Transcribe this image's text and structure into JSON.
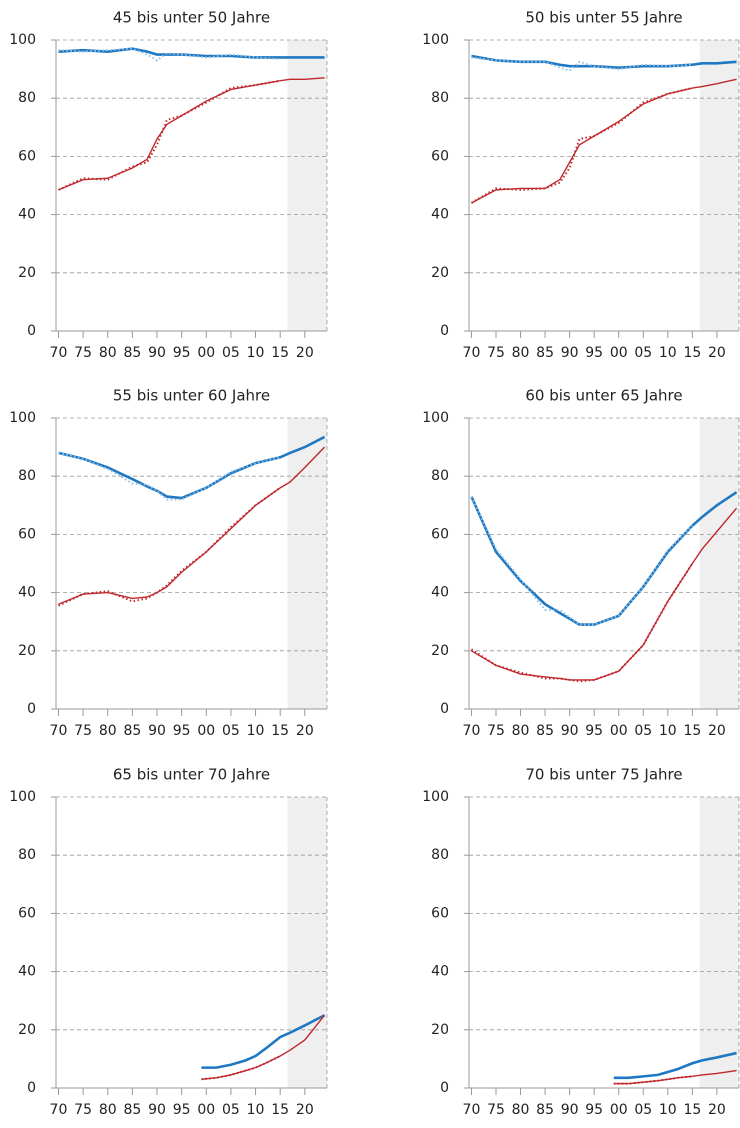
{
  "chart_data": [
    {
      "type": "line",
      "title": "45 bis unter 50 Jahre",
      "x": [
        1970,
        1975,
        1980,
        1985,
        1988,
        1990,
        1992,
        1995,
        2000,
        2005,
        2010,
        2015,
        2017,
        2020,
        2024
      ],
      "series": [
        {
          "color": "#1f78c1",
          "style": "solid",
          "values": [
            96,
            96.5,
            96,
            97,
            96,
            95,
            95,
            95,
            94.5,
            94.5,
            94,
            94,
            94,
            94,
            94
          ]
        },
        {
          "color": "#8dbfe8",
          "style": "dotted",
          "values": [
            96.5,
            96,
            96.5,
            97,
            95,
            93,
            95.5,
            95,
            94,
            95,
            94,
            93.5,
            null,
            null,
            null
          ]
        },
        {
          "color": "#c0282d",
          "style": "solid",
          "values": [
            48.5,
            52,
            52.5,
            56,
            59,
            66,
            71,
            74,
            79,
            83,
            84.5,
            86,
            86.5,
            86.5,
            87
          ]
        },
        {
          "color": "#c0282d",
          "style": "dotted",
          "values": [
            48.5,
            52.5,
            52,
            56.5,
            58,
            64,
            72.5,
            74,
            78.5,
            83.5,
            84.5,
            86,
            null,
            null,
            null
          ]
        }
      ],
      "xlim": [
        1969.5,
        2024.5
      ],
      "ylim": [
        0,
        100
      ],
      "xticks": [
        {
          "value": 1970,
          "label": "70"
        },
        {
          "value": 1975,
          "label": "75"
        },
        {
          "value": 1980,
          "label": "80"
        },
        {
          "value": 1985,
          "label": "85"
        },
        {
          "value": 1990,
          "label": "90"
        },
        {
          "value": 1995,
          "label": "95"
        },
        {
          "value": 2000,
          "label": "00"
        },
        {
          "value": 2005,
          "label": "05"
        },
        {
          "value": 2010,
          "label": "10"
        },
        {
          "value": 2015,
          "label": "15"
        },
        {
          "value": 2020,
          "label": "20"
        }
      ],
      "yticks": [
        0,
        20,
        40,
        60,
        80,
        100
      ],
      "grid": true,
      "shade": [
        2016.5,
        2024.5
      ]
    },
    {
      "type": "line",
      "title": "50 bis unter 55 Jahre",
      "x": [
        1970,
        1975,
        1980,
        1985,
        1988,
        1990,
        1992,
        1995,
        2000,
        2005,
        2010,
        2015,
        2017,
        2020,
        2024
      ],
      "series": [
        {
          "color": "#1f78c1",
          "style": "solid",
          "values": [
            94.5,
            93,
            92.5,
            92.5,
            91.5,
            91,
            91,
            91,
            90.5,
            91,
            91,
            91.5,
            92,
            92,
            92.5
          ]
        },
        {
          "color": "#8dbfe8",
          "style": "dotted",
          "values": [
            94,
            93,
            92.5,
            92.5,
            90.5,
            89.5,
            92.5,
            91,
            90,
            91.5,
            91,
            91.5,
            null,
            null,
            null
          ]
        },
        {
          "color": "#c0282d",
          "style": "solid",
          "values": [
            44,
            48.5,
            49,
            49,
            52,
            58,
            64,
            67,
            72,
            78,
            81.5,
            83.5,
            84,
            85,
            86.5
          ]
        },
        {
          "color": "#c0282d",
          "style": "dotted",
          "values": [
            44,
            49,
            48.5,
            49,
            51,
            56,
            66,
            67,
            71.5,
            78.5,
            81.5,
            83.5,
            null,
            null,
            null
          ]
        }
      ],
      "xlim": [
        1969.5,
        2024.5
      ],
      "ylim": [
        0,
        100
      ],
      "xticks": [
        {
          "value": 1970,
          "label": "70"
        },
        {
          "value": 1975,
          "label": "75"
        },
        {
          "value": 1980,
          "label": "80"
        },
        {
          "value": 1985,
          "label": "85"
        },
        {
          "value": 1990,
          "label": "90"
        },
        {
          "value": 1995,
          "label": "95"
        },
        {
          "value": 2000,
          "label": "00"
        },
        {
          "value": 2005,
          "label": "05"
        },
        {
          "value": 2010,
          "label": "10"
        },
        {
          "value": 2015,
          "label": "15"
        },
        {
          "value": 2020,
          "label": "20"
        }
      ],
      "yticks": [
        0,
        20,
        40,
        60,
        80,
        100
      ],
      "grid": true,
      "shade": [
        2016.5,
        2024.5
      ]
    },
    {
      "type": "line",
      "title": "55 bis unter 60 Jahre",
      "x": [
        1970,
        1975,
        1980,
        1985,
        1988,
        1990,
        1992,
        1995,
        2000,
        2005,
        2010,
        2015,
        2017,
        2020,
        2024
      ],
      "series": [
        {
          "color": "#1f78c1",
          "style": "solid",
          "values": [
            88,
            86,
            83,
            79,
            76.5,
            75,
            73,
            72.5,
            76,
            81,
            84.5,
            86.5,
            88,
            90,
            93.5
          ]
        },
        {
          "color": "#8dbfe8",
          "style": "dotted",
          "values": [
            88,
            86,
            82.5,
            77.5,
            77,
            75,
            72,
            72,
            76,
            81.5,
            84.5,
            86.5,
            null,
            null,
            null
          ]
        },
        {
          "color": "#c0282d",
          "style": "solid",
          "values": [
            36,
            39.5,
            40,
            38,
            38.5,
            40,
            42,
            47,
            54,
            62,
            70,
            76,
            78,
            83,
            90
          ]
        },
        {
          "color": "#c0282d",
          "style": "dotted",
          "values": [
            35.5,
            39.5,
            40.5,
            37,
            38,
            40,
            42.5,
            47.5,
            54,
            62.5,
            70,
            76,
            null,
            null,
            null
          ]
        }
      ],
      "xlim": [
        1969.5,
        2024.5
      ],
      "ylim": [
        0,
        100
      ],
      "xticks": [
        {
          "value": 1970,
          "label": "70"
        },
        {
          "value": 1975,
          "label": "75"
        },
        {
          "value": 1980,
          "label": "80"
        },
        {
          "value": 1985,
          "label": "85"
        },
        {
          "value": 1990,
          "label": "90"
        },
        {
          "value": 1995,
          "label": "95"
        },
        {
          "value": 2000,
          "label": "00"
        },
        {
          "value": 2005,
          "label": "05"
        },
        {
          "value": 2010,
          "label": "10"
        },
        {
          "value": 2015,
          "label": "15"
        },
        {
          "value": 2020,
          "label": "20"
        }
      ],
      "yticks": [
        0,
        20,
        40,
        60,
        80,
        100
      ],
      "grid": true,
      "shade": [
        2016.5,
        2024.5
      ]
    },
    {
      "type": "line",
      "title": "60 bis unter 65 Jahre",
      "x": [
        1970,
        1975,
        1980,
        1985,
        1988,
        1990,
        1992,
        1995,
        2000,
        2005,
        2010,
        2015,
        2017,
        2020,
        2024
      ],
      "series": [
        {
          "color": "#1f78c1",
          "style": "solid",
          "values": [
            73,
            54,
            44,
            36,
            33,
            31,
            29,
            29,
            32,
            42,
            54,
            63,
            66,
            70,
            74.5
          ]
        },
        {
          "color": "#8dbfe8",
          "style": "dotted",
          "values": [
            73,
            55,
            44.5,
            34,
            34,
            31.5,
            29,
            29,
            32,
            42,
            54.5,
            63,
            null,
            null,
            null
          ]
        },
        {
          "color": "#c0282d",
          "style": "solid",
          "values": [
            20,
            15,
            12,
            11,
            10.5,
            10,
            10,
            10,
            13,
            22,
            37,
            50,
            55,
            61,
            69
          ]
        },
        {
          "color": "#c0282d",
          "style": "dotted",
          "values": [
            20.5,
            15,
            12.5,
            10.5,
            10.5,
            10,
            9.5,
            10,
            13,
            22,
            37,
            50,
            null,
            null,
            null
          ]
        }
      ],
      "xlim": [
        1969.5,
        2024.5
      ],
      "ylim": [
        0,
        100
      ],
      "xticks": [
        {
          "value": 1970,
          "label": "70"
        },
        {
          "value": 1975,
          "label": "75"
        },
        {
          "value": 1980,
          "label": "80"
        },
        {
          "value": 1985,
          "label": "85"
        },
        {
          "value": 1990,
          "label": "90"
        },
        {
          "value": 1995,
          "label": "95"
        },
        {
          "value": 2000,
          "label": "00"
        },
        {
          "value": 2005,
          "label": "05"
        },
        {
          "value": 2010,
          "label": "10"
        },
        {
          "value": 2015,
          "label": "15"
        },
        {
          "value": 2020,
          "label": "20"
        }
      ],
      "yticks": [
        0,
        20,
        40,
        60,
        80,
        100
      ],
      "grid": true,
      "shade": [
        2016.5,
        2024.5
      ]
    },
    {
      "type": "line",
      "title": "65 bis unter 70 Jahre",
      "x": [
        1999,
        2002,
        2005,
        2008,
        2010,
        2012,
        2015,
        2017,
        2020,
        2024
      ],
      "series": [
        {
          "color": "#1f78c1",
          "style": "solid",
          "values": [
            7,
            7,
            8,
            9.5,
            11,
            13.5,
            17.5,
            19,
            21.5,
            25
          ]
        },
        {
          "color": "#c0282d",
          "style": "solid",
          "values": [
            3,
            3.5,
            4.5,
            6,
            7,
            8.5,
            11,
            13,
            16.5,
            25
          ]
        },
        {
          "color": "#c0282d",
          "style": "dotted",
          "values": [
            3,
            3.5,
            4.5,
            6,
            7,
            8.5,
            11,
            null,
            null,
            null
          ]
        }
      ],
      "xlim": [
        1969.5,
        2024.5
      ],
      "ylim": [
        0,
        100
      ],
      "xticks": [
        {
          "value": 1970,
          "label": "70"
        },
        {
          "value": 1975,
          "label": "75"
        },
        {
          "value": 1980,
          "label": "80"
        },
        {
          "value": 1985,
          "label": "85"
        },
        {
          "value": 1990,
          "label": "90"
        },
        {
          "value": 1995,
          "label": "95"
        },
        {
          "value": 2000,
          "label": "00"
        },
        {
          "value": 2005,
          "label": "05"
        },
        {
          "value": 2010,
          "label": "10"
        },
        {
          "value": 2015,
          "label": "15"
        },
        {
          "value": 2020,
          "label": "20"
        }
      ],
      "yticks": [
        0,
        20,
        40,
        60,
        80,
        100
      ],
      "grid": true,
      "shade": [
        2016.5,
        2024.5
      ]
    },
    {
      "type": "line",
      "title": "70 bis unter 75 Jahre",
      "x": [
        1999,
        2002,
        2005,
        2008,
        2010,
        2012,
        2015,
        2017,
        2020,
        2024
      ],
      "series": [
        {
          "color": "#1f78c1",
          "style": "solid",
          "values": [
            3.5,
            3.5,
            4,
            4.5,
            5.5,
            6.5,
            8.5,
            9.5,
            10.5,
            12
          ]
        },
        {
          "color": "#c0282d",
          "style": "solid",
          "values": [
            1.5,
            1.5,
            2,
            2.5,
            3,
            3.5,
            4,
            4.5,
            5,
            6
          ]
        },
        {
          "color": "#c0282d",
          "style": "dotted",
          "values": [
            1.5,
            1.5,
            2,
            2.5,
            3,
            3.5,
            4,
            null,
            null,
            null
          ]
        }
      ],
      "xlim": [
        1969.5,
        2024.5
      ],
      "ylim": [
        0,
        100
      ],
      "xticks": [
        {
          "value": 1970,
          "label": "70"
        },
        {
          "value": 1975,
          "label": "75"
        },
        {
          "value": 1980,
          "label": "80"
        },
        {
          "value": 1985,
          "label": "85"
        },
        {
          "value": 1990,
          "label": "90"
        },
        {
          "value": 1995,
          "label": "95"
        },
        {
          "value": 2000,
          "label": "00"
        },
        {
          "value": 2005,
          "label": "05"
        },
        {
          "value": 2010,
          "label": "10"
        },
        {
          "value": 2015,
          "label": "15"
        },
        {
          "value": 2020,
          "label": "20"
        }
      ],
      "yticks": [
        0,
        20,
        40,
        60,
        80,
        100
      ],
      "grid": true,
      "shade": [
        2016.5,
        2024.5
      ]
    }
  ]
}
